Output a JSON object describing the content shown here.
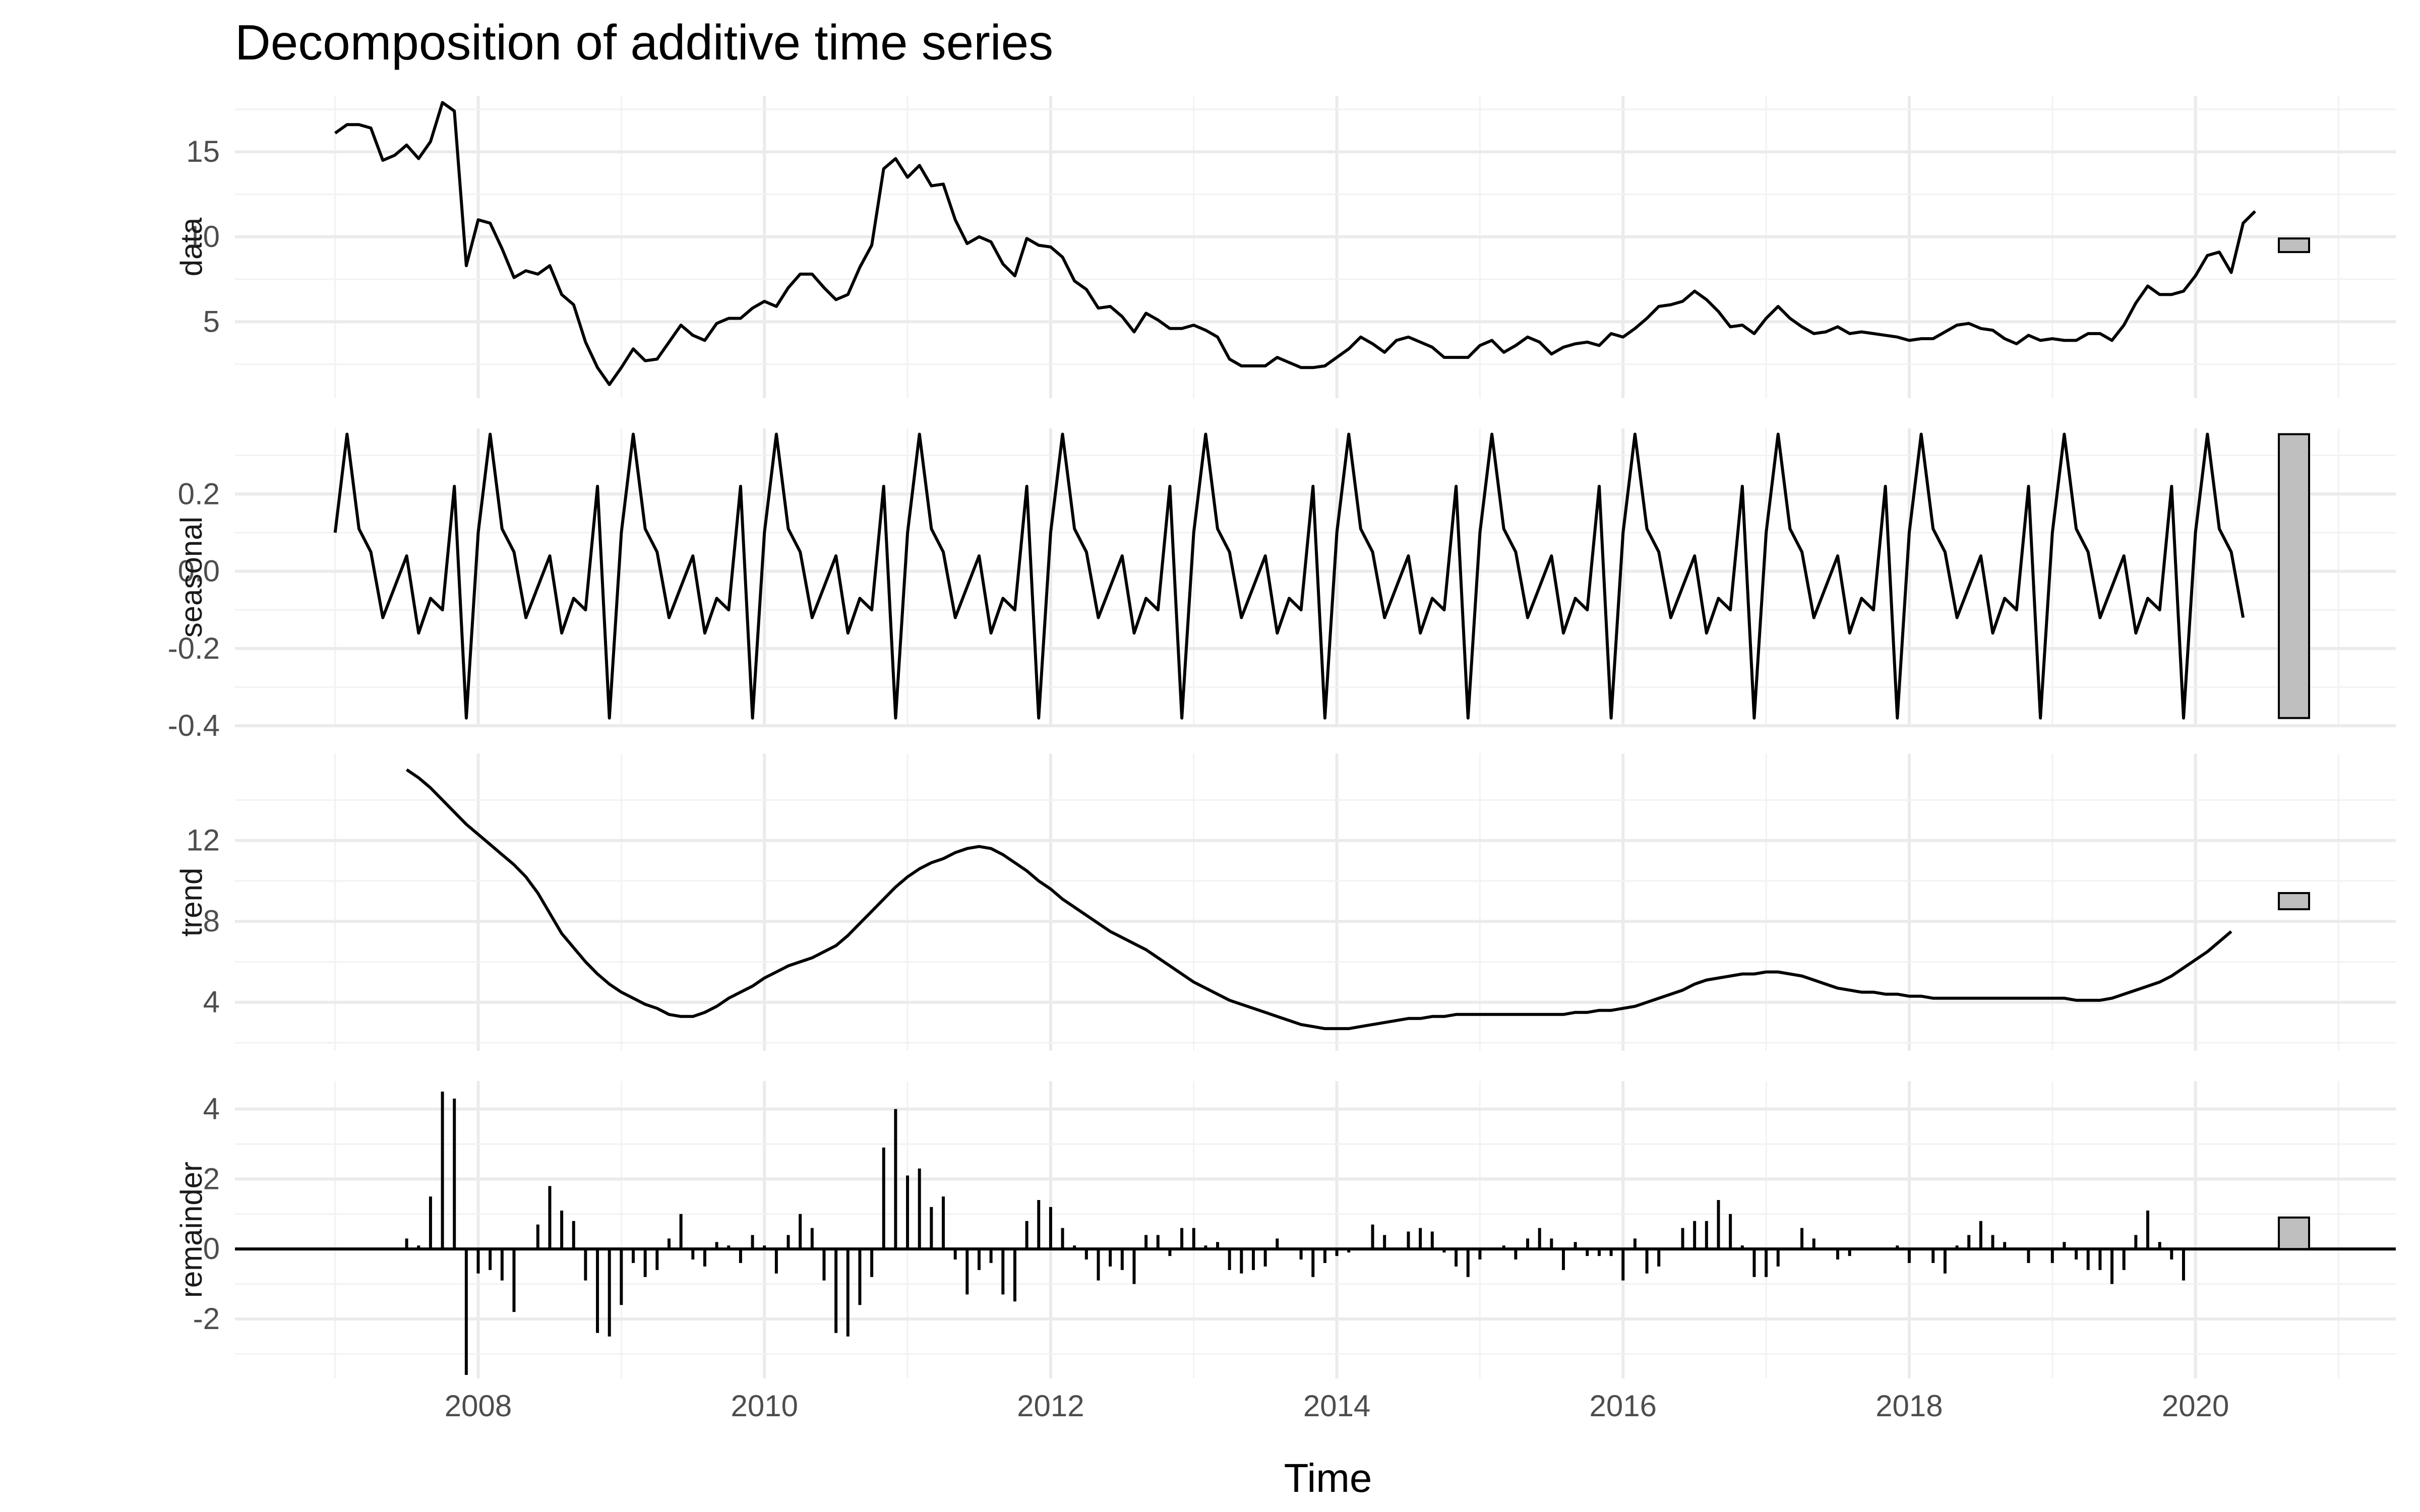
{
  "chart_data": {
    "type": "line",
    "title": "Decomposition of additive time series",
    "xlabel": "Time",
    "x_ticks": [
      2008,
      2010,
      2012,
      2014,
      2016,
      2018,
      2020
    ],
    "xlim": [
      2006.3,
      2021.4
    ],
    "start": 2007,
    "frequency": 12,
    "grid": true,
    "legend": "none",
    "line_color": "#000000",
    "range_bar_color": "#bfbfbf",
    "panels": [
      {
        "name": "data",
        "ylabel": "data",
        "type": "line",
        "ylim": [
          0.5,
          18.3
        ],
        "y_ticks": [
          5,
          10,
          15
        ],
        "y_tick_labels": [
          "5",
          "10",
          "15"
        ],
        "range_bar": [
          9.1,
          9.9
        ],
        "start": 2007.0,
        "values": [
          16.1,
          16.6,
          16.6,
          16.4,
          14.5,
          14.8,
          15.4,
          14.6,
          15.6,
          17.9,
          17.4,
          8.3,
          11.0,
          10.8,
          9.3,
          7.6,
          8.0,
          7.8,
          8.3,
          6.6,
          6.0,
          3.8,
          2.3,
          1.3,
          2.3,
          3.4,
          2.7,
          2.8,
          3.8,
          4.8,
          4.2,
          3.9,
          4.9,
          5.2,
          5.2,
          5.8,
          6.2,
          5.9,
          7.0,
          7.8,
          7.8,
          7.0,
          6.3,
          6.6,
          8.2,
          9.5,
          14.0,
          14.6,
          13.5,
          14.2,
          13.0,
          13.1,
          11.0,
          9.6,
          10.0,
          9.7,
          8.4,
          7.7,
          9.9,
          9.5,
          9.4,
          8.8,
          7.4,
          6.9,
          5.8,
          5.9,
          5.3,
          4.4,
          5.5,
          5.1,
          4.6,
          4.6,
          4.8,
          4.5,
          4.1,
          2.8,
          2.4,
          2.4,
          2.4,
          2.9,
          2.6,
          2.3,
          2.3,
          2.4,
          2.9,
          3.4,
          4.1,
          3.7,
          3.2,
          3.9,
          4.1,
          3.8,
          3.5,
          2.9,
          2.9,
          2.9,
          3.6,
          3.9,
          3.2,
          3.6,
          4.1,
          3.8,
          3.1,
          3.5,
          3.7,
          3.8,
          3.6,
          4.3,
          4.1,
          4.6,
          5.2,
          5.9,
          6.0,
          6.2,
          6.8,
          6.3,
          5.6,
          4.7,
          4.8,
          4.3,
          5.2,
          5.9,
          5.2,
          4.7,
          4.3,
          4.4,
          4.7,
          4.3,
          4.4,
          4.3,
          4.2,
          4.1,
          3.9,
          4.0,
          4.0,
          4.4,
          4.8,
          4.9,
          4.6,
          4.5,
          4.0,
          3.7,
          4.2,
          3.9,
          4.0,
          3.9,
          3.9,
          4.3,
          4.3,
          3.9,
          4.8,
          6.1,
          7.1,
          6.6,
          6.6,
          6.8,
          7.7,
          8.9,
          9.1,
          7.9,
          10.8,
          11.5
        ]
      },
      {
        "name": "seasonal",
        "ylabel": "seasonal",
        "type": "line",
        "ylim": [
          -0.4,
          0.37
        ],
        "y_ticks": [
          -0.4,
          -0.2,
          0.0,
          0.2
        ],
        "y_tick_labels": [
          "-0.4",
          "-0.2",
          "0.0",
          "0.2"
        ],
        "range_bar": [
          -0.38,
          0.355
        ],
        "start": 2007.0,
        "pattern": [
          0.1,
          0.355,
          0.11,
          0.05,
          -0.12,
          -0.04,
          0.04,
          -0.16,
          -0.07,
          -0.1,
          0.22,
          -0.38
        ],
        "values": []
      },
      {
        "name": "trend",
        "ylabel": "trend",
        "type": "line",
        "ylim": [
          1.6,
          16.3
        ],
        "y_ticks": [
          4,
          8,
          12
        ],
        "y_tick_labels": [
          "4",
          "8",
          "12"
        ],
        "range_bar": [
          8.6,
          9.4
        ],
        "start": 2007.5,
        "values": [
          15.5,
          15.1,
          14.6,
          14.0,
          13.4,
          12.8,
          12.3,
          11.8,
          11.3,
          10.8,
          10.2,
          9.4,
          8.4,
          7.4,
          6.7,
          6.0,
          5.4,
          4.9,
          4.5,
          4.2,
          3.9,
          3.7,
          3.4,
          3.3,
          3.3,
          3.5,
          3.8,
          4.2,
          4.5,
          4.8,
          5.2,
          5.5,
          5.8,
          6.0,
          6.2,
          6.5,
          6.8,
          7.3,
          7.9,
          8.5,
          9.1,
          9.7,
          10.2,
          10.6,
          10.9,
          11.1,
          11.4,
          11.6,
          11.7,
          11.6,
          11.3,
          10.9,
          10.5,
          10.0,
          9.6,
          9.1,
          8.7,
          8.3,
          7.9,
          7.5,
          7.2,
          6.9,
          6.6,
          6.2,
          5.8,
          5.4,
          5.0,
          4.7,
          4.4,
          4.1,
          3.9,
          3.7,
          3.5,
          3.3,
          3.1,
          2.9,
          2.8,
          2.7,
          2.7,
          2.7,
          2.8,
          2.9,
          3.0,
          3.1,
          3.2,
          3.2,
          3.3,
          3.3,
          3.4,
          3.4,
          3.4,
          3.4,
          3.4,
          3.4,
          3.4,
          3.4,
          3.4,
          3.4,
          3.5,
          3.5,
          3.6,
          3.6,
          3.7,
          3.8,
          4.0,
          4.2,
          4.4,
          4.6,
          4.9,
          5.1,
          5.2,
          5.3,
          5.4,
          5.4,
          5.5,
          5.5,
          5.4,
          5.3,
          5.1,
          4.9,
          4.7,
          4.6,
          4.5,
          4.5,
          4.4,
          4.4,
          4.3,
          4.3,
          4.2,
          4.2,
          4.2,
          4.2,
          4.2,
          4.2,
          4.2,
          4.2,
          4.2,
          4.2,
          4.2,
          4.2,
          4.1,
          4.1,
          4.1,
          4.2,
          4.4,
          4.6,
          4.8,
          5.0,
          5.3,
          5.7,
          6.1,
          6.5,
          7.0,
          7.5
        ]
      },
      {
        "name": "remainder",
        "ylabel": "remainder",
        "type": "bar",
        "ylim": [
          -3.7,
          4.8
        ],
        "y_ticks": [
          -2,
          0,
          2,
          4
        ],
        "y_tick_labels": [
          "-2",
          "0",
          "2",
          "4"
        ],
        "range_bar": [
          0,
          0.9
        ],
        "start": 2007.5,
        "values": [
          0.3,
          0.1,
          1.5,
          4.5,
          4.3,
          -3.6,
          -0.7,
          -0.6,
          -0.9,
          -1.8,
          0,
          0.7,
          1.8,
          1.1,
          0.8,
          -0.9,
          -2.4,
          -2.5,
          -1.6,
          -0.4,
          -0.8,
          -0.6,
          0.3,
          1.0,
          -0.3,
          -0.5,
          0.2,
          0.1,
          -0.4,
          0.4,
          0.1,
          -0.7,
          0.4,
          1.0,
          0.6,
          -0.9,
          -2.4,
          -2.5,
          -1.6,
          -0.8,
          2.9,
          4.0,
          2.1,
          2.3,
          1.2,
          1.5,
          -0.3,
          -1.3,
          -0.6,
          -0.4,
          -1.3,
          -1.5,
          0.8,
          1.4,
          1.2,
          0.6,
          0.1,
          -0.3,
          -0.9,
          -0.5,
          -0.6,
          -1.0,
          0.4,
          0.4,
          -0.2,
          0.6,
          0.6,
          0.1,
          0.2,
          -0.6,
          -0.7,
          -0.6,
          -0.5,
          0.3,
          0,
          -0.3,
          -0.8,
          -0.4,
          -0.2,
          -0.1,
          0,
          0.7,
          0.4,
          0,
          0.5,
          0.6,
          0.5,
          -0.1,
          -0.5,
          -0.8,
          -0.3,
          0,
          0.1,
          -0.3,
          0.3,
          0.6,
          0.3,
          -0.6,
          0.2,
          -0.2,
          -0.2,
          -0.2,
          -0.9,
          0.3,
          -0.7,
          -0.5,
          0,
          0.6,
          0.8,
          0.8,
          1.4,
          1.0,
          0.1,
          -0.8,
          -0.8,
          -0.5,
          0,
          0.6,
          0.3,
          0,
          -0.3,
          -0.2,
          0,
          0,
          0,
          0.1,
          -0.4,
          0,
          -0.4,
          -0.7,
          0.1,
          0.4,
          0.8,
          0.4,
          0.2,
          0,
          -0.4,
          0,
          -0.4,
          0.2,
          -0.3,
          -0.6,
          -0.6,
          -1.0,
          -0.6,
          0.4,
          1.1,
          0.2,
          -0.3,
          -0.9
        ]
      }
    ]
  }
}
